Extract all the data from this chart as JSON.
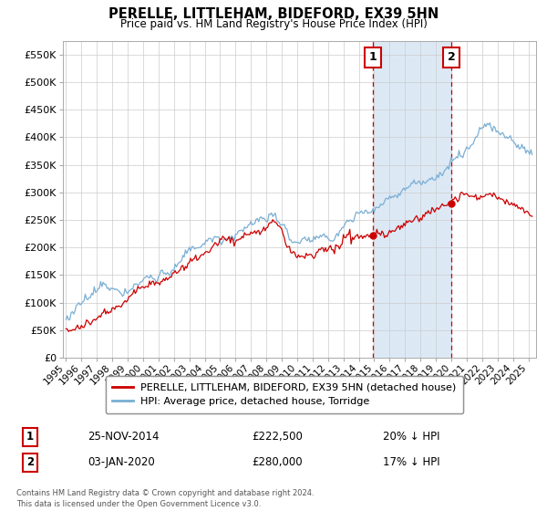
{
  "title": "PERELLE, LITTLEHAM, BIDEFORD, EX39 5HN",
  "subtitle": "Price paid vs. HM Land Registry's House Price Index (HPI)",
  "legend_line1": "PERELLE, LITTLEHAM, BIDEFORD, EX39 5HN (detached house)",
  "legend_line2": "HPI: Average price, detached house, Torridge",
  "sale1_date": "25-NOV-2014",
  "sale1_price": "£222,500",
  "sale1_hpi": "20% ↓ HPI",
  "sale2_date": "03-JAN-2020",
  "sale2_price": "£280,000",
  "sale2_hpi": "17% ↓ HPI",
  "footer": "Contains HM Land Registry data © Crown copyright and database right 2024.\nThis data is licensed under the Open Government Licence v3.0.",
  "price_color": "#cc0000",
  "hpi_color": "#7bafd4",
  "highlight_bg": "#dce9f5",
  "vline_color": "#cc0000",
  "ylim": [
    0,
    575000
  ],
  "yticks": [
    0,
    50000,
    100000,
    150000,
    200000,
    250000,
    300000,
    350000,
    400000,
    450000,
    500000,
    550000
  ],
  "sale1_x": 2014.92,
  "sale2_x": 2020.01,
  "xmin": 1994.8,
  "xmax": 2025.5
}
